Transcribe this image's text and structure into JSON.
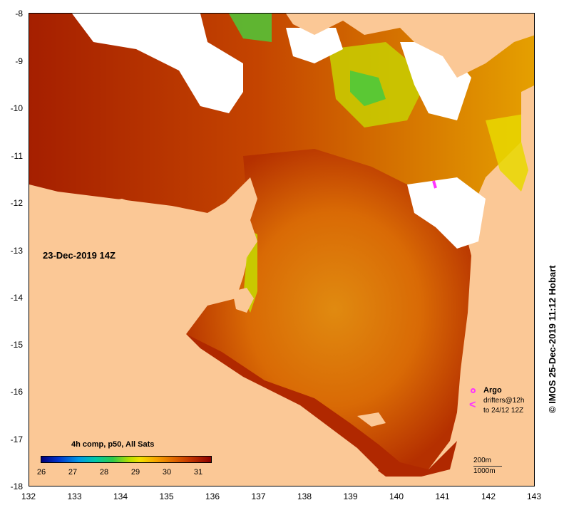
{
  "map": {
    "date_label": "23-Dec-2019 14Z",
    "credit": "© IMOS 25-Dec-2019 11:12 Hobart",
    "x_ticks": [
      "132",
      "133",
      "134",
      "135",
      "136",
      "137",
      "138",
      "139",
      "140",
      "141",
      "142",
      "143"
    ],
    "y_ticks": [
      "-8",
      "-9",
      "-10",
      "-11",
      "-12",
      "-13",
      "-14",
      "-15",
      "-16",
      "-17",
      "-18"
    ],
    "colorbar": {
      "title": "4h comp, p50, All Sats",
      "ticks": [
        "26",
        "27",
        "28",
        "29",
        "30",
        "31"
      ]
    },
    "legend": {
      "argo": "Argo",
      "drifters_line1": "drifters@12h",
      "drifters_line2": "to 24/12 12Z"
    },
    "isobaths": {
      "shallow": "200m",
      "deep": "1000m"
    },
    "colors": {
      "land": "#fbc896",
      "no_data": "#ffffff",
      "warm_sst": "#b52a00",
      "mid_sst": "#e07a00",
      "cool_sst": "#6fd000",
      "marker": "#ff33ff"
    }
  }
}
